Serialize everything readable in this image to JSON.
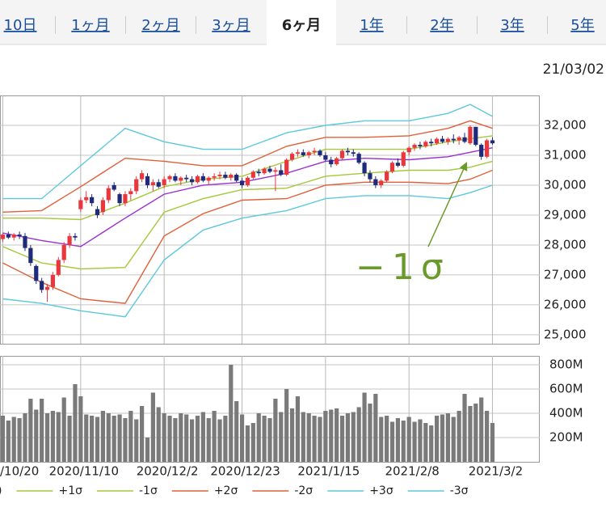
{
  "tabs": [
    "10日",
    "1ヶ月",
    "2ヶ月",
    "3ヶ月",
    "6ヶ月",
    "1年",
    "2年",
    "3年",
    "5年"
  ],
  "active_tab": 4,
  "date": "21/03/02",
  "annotation": "−1σ",
  "chart_data": [
    {
      "type": "candlestick",
      "up_color": "#e8383d",
      "down_color": "#1f2a7a",
      "grid": true,
      "ylim": [
        24700,
        33000
      ],
      "yticks": [
        {
          "value": 25000,
          "label": "25,000"
        },
        {
          "value": 26000,
          "label": "26,000"
        },
        {
          "value": 27000,
          "label": "27,000"
        },
        {
          "value": 28000,
          "label": "28,000"
        },
        {
          "value": 29000,
          "label": "29,000"
        },
        {
          "value": 30000,
          "label": "30,000"
        },
        {
          "value": 31000,
          "label": "31,000"
        },
        {
          "value": 32000,
          "label": "32,000"
        }
      ],
      "xlim": [
        -0.5,
        96.5
      ],
      "xticks": [
        {
          "value": 0,
          "label": "/10/20"
        },
        {
          "value": 14,
          "label": "2020/11/10"
        },
        {
          "value": 29,
          "label": "2020/12/2"
        },
        {
          "value": 43,
          "label": "2020/12/23"
        },
        {
          "value": 58,
          "label": "2021/1/15"
        },
        {
          "value": 73,
          "label": "2021/2/8"
        },
        {
          "value": 88,
          "label": "2021/3/2"
        }
      ],
      "candles": [
        [
          28200,
          28400,
          28100,
          28350
        ],
        [
          28350,
          28450,
          28200,
          28250
        ],
        [
          28250,
          28400,
          28150,
          28350
        ],
        [
          28350,
          28450,
          28200,
          28300
        ],
        [
          28300,
          28400,
          27800,
          27900
        ],
        [
          27900,
          28000,
          27300,
          27400
        ],
        [
          27300,
          27350,
          26700,
          26800
        ],
        [
          26800,
          26900,
          26400,
          26500
        ],
        [
          26500,
          26700,
          26100,
          26600
        ],
        [
          26600,
          27100,
          26500,
          27000
        ],
        [
          27000,
          27600,
          26950,
          27500
        ],
        [
          27500,
          28100,
          27400,
          28000
        ],
        [
          28000,
          28400,
          27900,
          28300
        ],
        [
          28300,
          28400,
          28150,
          28250
        ],
        [
          29200,
          29600,
          29100,
          29500
        ],
        [
          29500,
          29800,
          29400,
          29600
        ],
        [
          29600,
          29700,
          29300,
          29400
        ],
        [
          29200,
          29300,
          28900,
          29000
        ],
        [
          29100,
          29600,
          29000,
          29500
        ],
        [
          29500,
          30000,
          29400,
          29900
        ],
        [
          30000,
          30100,
          29800,
          29850
        ],
        [
          29700,
          29750,
          29300,
          29400
        ],
        [
          29400,
          29800,
          29300,
          29700
        ],
        [
          29700,
          29900,
          29500,
          29800
        ],
        [
          29800,
          30300,
          29700,
          30200
        ],
        [
          30200,
          30500,
          30100,
          30400
        ],
        [
          30300,
          30400,
          29900,
          30000
        ],
        [
          30000,
          30200,
          29800,
          30100
        ],
        [
          30100,
          30200,
          29900,
          29950
        ],
        [
          30000,
          30300,
          29900,
          30200
        ],
        [
          30200,
          30350,
          30100,
          30300
        ],
        [
          30300,
          30400,
          30100,
          30150
        ],
        [
          30150,
          30300,
          30000,
          30250
        ],
        [
          30250,
          30350,
          30100,
          30200
        ],
        [
          30200,
          30300,
          30000,
          30100
        ],
        [
          30100,
          30350,
          30050,
          30300
        ],
        [
          30300,
          30400,
          30100,
          30150
        ],
        [
          30150,
          30300,
          30000,
          30250
        ],
        [
          30250,
          30400,
          30150,
          30300
        ],
        [
          30300,
          30450,
          30200,
          30350
        ],
        [
          30350,
          30450,
          30200,
          30250
        ],
        [
          30250,
          30400,
          30150,
          30350
        ],
        [
          30350,
          30400,
          30100,
          30150
        ],
        [
          30150,
          30250,
          29900,
          30000
        ],
        [
          30000,
          30300,
          29950,
          30250
        ],
        [
          30250,
          30500,
          30200,
          30450
        ],
        [
          30450,
          30550,
          30300,
          30400
        ],
        [
          30400,
          30600,
          30350,
          30550
        ],
        [
          30550,
          30650,
          30400,
          30450
        ],
        [
          30450,
          30600,
          29800,
          30500
        ],
        [
          30500,
          30700,
          30300,
          30350
        ],
        [
          30350,
          30900,
          30300,
          30850
        ],
        [
          30850,
          31100,
          30800,
          31050
        ],
        [
          31050,
          31200,
          30950,
          31100
        ],
        [
          31100,
          31200,
          30950,
          31000
        ],
        [
          31000,
          31150,
          30900,
          31100
        ],
        [
          31100,
          31250,
          31000,
          31150
        ],
        [
          31150,
          31200,
          30950,
          31000
        ],
        [
          31000,
          31100,
          30800,
          30850
        ],
        [
          30850,
          30950,
          30600,
          30700
        ],
        [
          30700,
          30950,
          30650,
          30900
        ],
        [
          30900,
          31200,
          30850,
          31150
        ],
        [
          31150,
          31250,
          31000,
          31100
        ],
        [
          31100,
          31200,
          30950,
          31050
        ],
        [
          31050,
          31100,
          30700,
          30750
        ],
        [
          30750,
          30800,
          30300,
          30400
        ],
        [
          30400,
          30500,
          30100,
          30200
        ],
        [
          30200,
          30300,
          29900,
          30000
        ],
        [
          30000,
          30200,
          29900,
          30150
        ],
        [
          30150,
          30500,
          30100,
          30450
        ],
        [
          30450,
          30800,
          30400,
          30750
        ],
        [
          30750,
          30900,
          30600,
          30650
        ],
        [
          30650,
          31150,
          30600,
          31100
        ],
        [
          31100,
          31300,
          31000,
          31250
        ],
        [
          31250,
          31400,
          31150,
          31350
        ],
        [
          31350,
          31450,
          31200,
          31300
        ],
        [
          31300,
          31500,
          31250,
          31450
        ],
        [
          31450,
          31550,
          31300,
          31400
        ],
        [
          31400,
          31600,
          31350,
          31550
        ],
        [
          31550,
          31650,
          31400,
          31450
        ],
        [
          31450,
          31600,
          31350,
          31550
        ],
        [
          31550,
          31700,
          31400,
          31500
        ],
        [
          31500,
          31650,
          31350,
          31600
        ],
        [
          31600,
          31750,
          31400,
          31450
        ],
        [
          31400,
          32000,
          31350,
          31950
        ],
        [
          31950,
          31950,
          31300,
          31350
        ],
        [
          31350,
          31400,
          30850,
          30950
        ],
        [
          30950,
          31550,
          30900,
          31500
        ],
        [
          31500,
          31600,
          31350,
          31400
        ]
      ],
      "series": [
        {
          "name": ")",
          "color": "#9b30d0",
          "x": [
            0,
            7,
            14,
            22,
            29,
            36,
            43,
            51,
            58,
            65,
            73,
            80,
            84,
            88
          ],
          "values": [
            28400,
            28150,
            27950,
            28900,
            29700,
            30000,
            30100,
            30400,
            30800,
            30900,
            30850,
            30950,
            31100,
            31250
          ]
        },
        {
          "name": "+1σ",
          "color": "#a6c83a",
          "x": [
            0,
            7,
            14,
            22,
            29,
            36,
            43,
            51,
            58,
            65,
            73,
            80,
            84,
            88
          ],
          "values": [
            28900,
            28900,
            28850,
            29400,
            29950,
            30200,
            30300,
            30800,
            31200,
            31200,
            31200,
            31450,
            31550,
            31650
          ]
        },
        {
          "name": "-1σ",
          "color": "#a6c83a",
          "x": [
            0,
            7,
            14,
            22,
            29,
            36,
            43,
            51,
            58,
            65,
            73,
            80,
            84,
            88
          ],
          "values": [
            27950,
            27400,
            27200,
            27250,
            29100,
            29550,
            29850,
            29900,
            30300,
            30400,
            30500,
            30500,
            30600,
            30800
          ]
        },
        {
          "name": "+2σ",
          "color": "#e0603a",
          "x": [
            0,
            7,
            14,
            22,
            29,
            36,
            43,
            51,
            58,
            65,
            73,
            80,
            84,
            88
          ],
          "values": [
            29100,
            29150,
            29950,
            30900,
            30800,
            30650,
            30650,
            31300,
            31600,
            31600,
            31650,
            31900,
            32150,
            31900
          ]
        },
        {
          "name": "-2σ",
          "color": "#e0603a",
          "x": [
            0,
            7,
            14,
            22,
            29,
            36,
            43,
            51,
            58,
            65,
            73,
            80,
            84,
            88
          ],
          "values": [
            27400,
            26750,
            26200,
            26050,
            28300,
            29050,
            29500,
            29550,
            30000,
            30100,
            30100,
            30050,
            30200,
            30500
          ]
        },
        {
          "name": "+3σ",
          "color": "#5cc8dc",
          "x": [
            0,
            7,
            14,
            22,
            29,
            36,
            43,
            51,
            58,
            65,
            73,
            80,
            84,
            88
          ],
          "values": [
            29550,
            29550,
            30650,
            31900,
            31450,
            31200,
            31200,
            31750,
            32000,
            32150,
            32150,
            32400,
            32700,
            32300
          ]
        },
        {
          "name": "-3σ",
          "color": "#5cc8dc",
          "x": [
            0,
            7,
            14,
            22,
            29,
            36,
            43,
            51,
            58,
            65,
            73,
            80,
            84,
            88
          ],
          "values": [
            26200,
            26050,
            25800,
            25600,
            27500,
            28500,
            28900,
            29150,
            29550,
            29650,
            29650,
            29550,
            29750,
            30000
          ]
        }
      ]
    },
    {
      "type": "bar",
      "color": "#7a7a7a",
      "grid": true,
      "ylim": [
        0,
        873
      ],
      "yticks": [
        {
          "value": 200,
          "label": "200M"
        },
        {
          "value": 400,
          "label": "400M"
        },
        {
          "value": 600,
          "label": "600M"
        },
        {
          "value": 800,
          "label": "800M"
        }
      ],
      "values": [
        380,
        340,
        370,
        360,
        400,
        520,
        430,
        520,
        400,
        420,
        410,
        530,
        380,
        640,
        540,
        390,
        380,
        370,
        420,
        400,
        380,
        390,
        360,
        420,
        350,
        460,
        200,
        570,
        450,
        400,
        380,
        360,
        400,
        390,
        350,
        380,
        410,
        360,
        420,
        350,
        380,
        800,
        500,
        390,
        300,
        320,
        400,
        380,
        360,
        520,
        410,
        600,
        440,
        540,
        410,
        400,
        380,
        370,
        420,
        430,
        440,
        380,
        400,
        410,
        450,
        570,
        480,
        560,
        370,
        380,
        330,
        360,
        340,
        370,
        330,
        350,
        320,
        300,
        380,
        390,
        400,
        370,
        420,
        560,
        460,
        480,
        530,
        420,
        320
      ]
    }
  ]
}
